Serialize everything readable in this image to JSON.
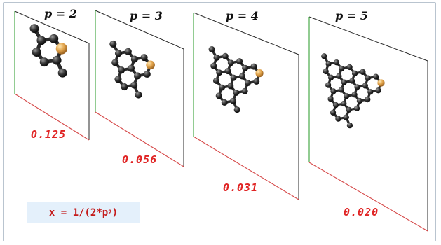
{
  "panels": [
    {
      "p_label": "p = 2",
      "value": "0.125",
      "rings": 1
    },
    {
      "p_label": "p = 3",
      "value": "0.056",
      "rings": 3
    },
    {
      "p_label": "p = 4",
      "value": "0.031",
      "rings": 6
    },
    {
      "p_label": "p = 5",
      "value": "0.020",
      "rings": 10
    }
  ],
  "formula": {
    "prefix": "x = 1/(2*p",
    "exponent": "2",
    "suffix": ")"
  },
  "colors": {
    "carbon": "#3a3a3a",
    "heteroatom": "#e0a24a",
    "frame_red": "#d64a4a",
    "frame_green": "#3aa23a",
    "value_text": "#e02424"
  }
}
